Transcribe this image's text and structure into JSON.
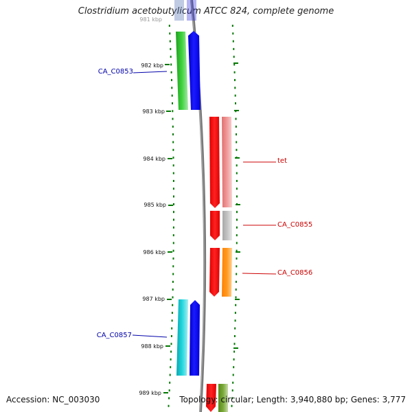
{
  "title": "Clostridium acetobutylicum ATCC 824, complete genome",
  "footer": {
    "accession": "Accession: NC_003030",
    "summary": "Topology: circular; Length: 3,940,880 bp; Genes: 3,777"
  },
  "ruler": {
    "ticks": [
      "981 kbp",
      "982 kbp",
      "983 kbp",
      "984 kbp",
      "985 kbp",
      "986 kbp",
      "987 kbp",
      "988 kbp",
      "989 kbp"
    ]
  },
  "genes": [
    {
      "label": "CA_C0853",
      "label_color": "#0000aa",
      "side": "left"
    },
    {
      "label": "tet",
      "label_color": "#cc0000",
      "side": "right"
    },
    {
      "label": "CA_C0855",
      "label_color": "#cc0000",
      "side": "right"
    },
    {
      "label": "CA_C0856",
      "label_color": "#cc0000",
      "side": "right"
    },
    {
      "label": "CA_C0857",
      "label_color": "#0000aa",
      "side": "left"
    }
  ],
  "colors": {
    "backbone": "#808080",
    "tick": "#007700",
    "cds_forward": "#0000ff",
    "cds_reverse": "#ff0000",
    "gene_green": "#22bb22",
    "gene_pink": "#e87878",
    "gene_gray": "#b0b0b0",
    "gene_orange": "#ff8800",
    "gene_cyan": "#11c8d0",
    "gene_olive": "#6a9a2a"
  }
}
